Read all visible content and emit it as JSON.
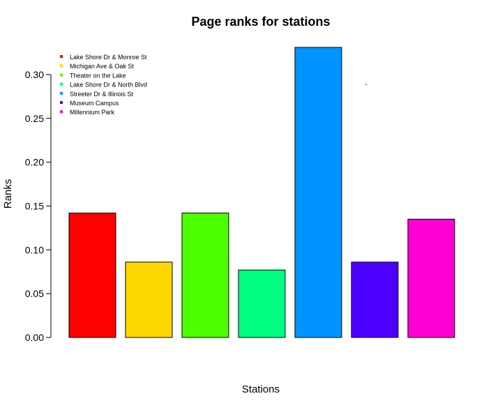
{
  "chart_data": {
    "type": "bar",
    "title": "Page ranks for stations",
    "xlabel": "Stations",
    "ylabel": "Ranks",
    "ylim": [
      0,
      0.33
    ],
    "yticks": [
      "0.00",
      "0.05",
      "0.10",
      "0.15",
      "0.20",
      "0.25",
      "0.30"
    ],
    "grid": false,
    "legend_position": "top-left",
    "categories": [
      "Lake Shore Dr & Monroe St",
      "Michigan Ave & Oak St",
      "Theater on the Lake",
      "Lake Shore Dr & North Blvd",
      "Streeter Dr & Illinois St",
      "Museum Campus",
      "Millennium Park"
    ],
    "values": [
      0.142,
      0.086,
      0.142,
      0.077,
      0.331,
      0.086,
      0.135
    ],
    "colors": [
      "#FF0000",
      "#FFD700",
      "#4CFF00",
      "#00FF80",
      "#0094FF",
      "#4C00FF",
      "#FF00D4"
    ]
  }
}
